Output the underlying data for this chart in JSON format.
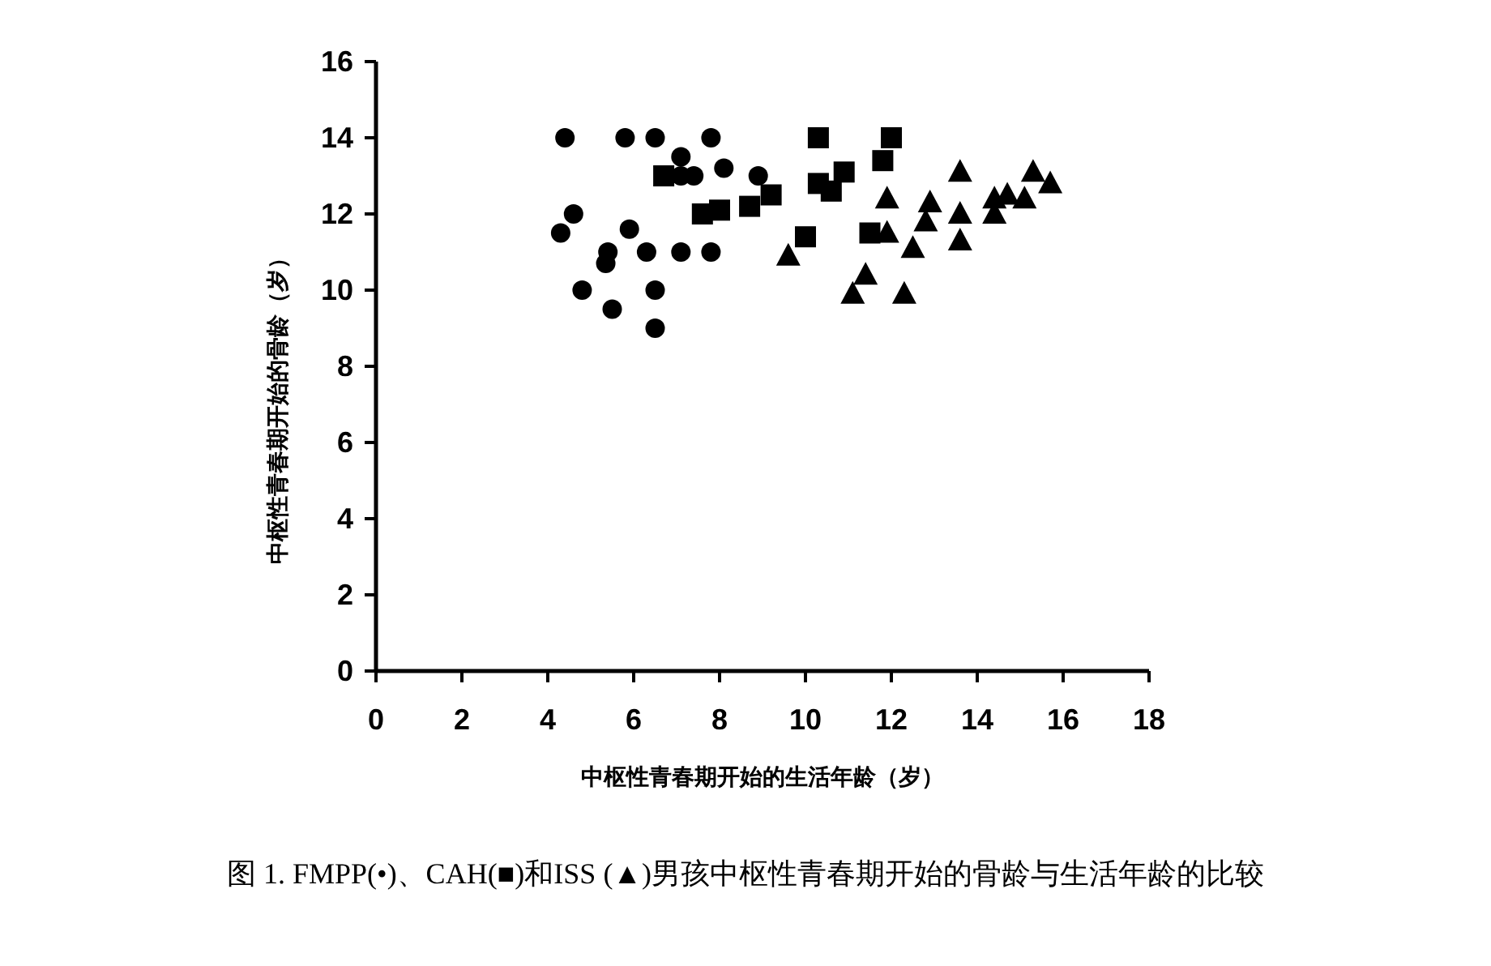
{
  "chart_data": {
    "type": "scatter",
    "xlabel": "中枢性青春期开始的生活年龄（岁）",
    "ylabel": "中枢性青春期开始的骨龄（岁）",
    "annotations": [
      "图 1. FMPP(•)、CAH(■)和ISS (▲)男孩中枢性青春期开始的骨龄与生活年龄的比较"
    ],
    "xlim": [
      0,
      18
    ],
    "xticks": [
      0,
      2,
      4,
      6,
      8,
      10,
      12,
      14,
      16,
      18
    ],
    "ylim": [
      0,
      16
    ],
    "yticks": [
      0,
      2,
      4,
      6,
      8,
      10,
      12,
      14,
      16
    ],
    "grid": false,
    "series": [
      {
        "color": "#000000",
        "marker": "circle",
        "x": [
          4.4,
          4.3,
          4.6,
          4.8,
          5.4,
          5.35,
          5.5,
          5.8,
          5.9,
          6.3,
          6.5,
          6.5,
          6.5,
          7.1,
          7.1,
          7.8,
          7.8,
          8.1,
          8.9,
          7.1,
          7.4
        ],
        "values": [
          14,
          11.5,
          12,
          10,
          11.0,
          10.7,
          9.5,
          14,
          11.6,
          11,
          14,
          10,
          9,
          13.5,
          11,
          14,
          11,
          13.2,
          13,
          13,
          13
        ]
      },
      {
        "color": "#000000",
        "marker": "square",
        "x": [
          6.7,
          7.6,
          8.0,
          8.7,
          9.2,
          10.0,
          10.3,
          12.0,
          11.8,
          10.9,
          10.3,
          10.6,
          11.5
        ],
        "values": [
          13,
          12,
          12.1,
          12.2,
          12.5,
          11.4,
          14,
          14,
          13.4,
          13.1,
          12.8,
          12.6,
          11.5
        ]
      },
      {
        "color": "#000000",
        "marker": "triangle",
        "x": [
          9.6,
          11.9,
          11.9,
          11.4,
          11.1,
          12.3,
          12.5,
          12.9,
          12.8,
          13.6,
          13.6,
          13.6,
          14.4,
          14.4,
          14.7,
          15.1,
          15.3,
          15.7
        ],
        "values": [
          10.9,
          12.4,
          11.5,
          10.4,
          9.9,
          9.9,
          11.1,
          12.3,
          11.8,
          12,
          11.3,
          13.1,
          12.4,
          12,
          12.5,
          12.4,
          13.1,
          12.8
        ]
      }
    ]
  }
}
